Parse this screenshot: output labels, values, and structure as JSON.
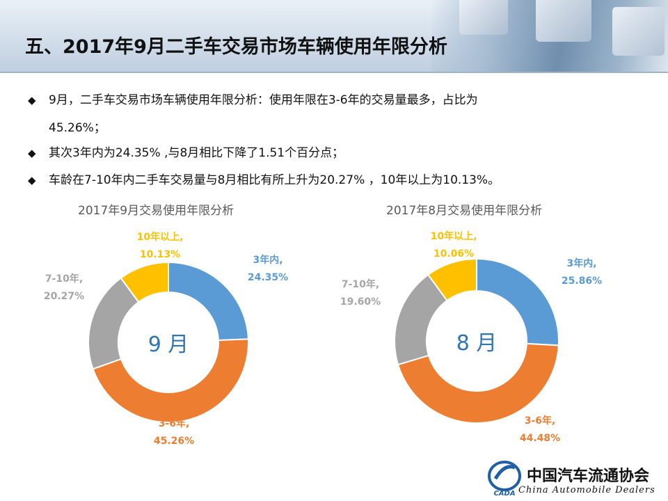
{
  "title": "五、2017年9月二手车交易市场车辆使用年限分析",
  "bullets": [
    {
      "line1": "9月，二手车交易市场车辆使用年限分析：使用年限在3-6年的交易量最多，占比为",
      "line2": "45.26%；"
    },
    {
      "line1": "其次3年内为24.35% ,与8月相比下降了1.51个百分点；"
    },
    {
      "line1": "车龄在7-10年内二手车交易量与8月相比有所上升为20.27% ，10年以上为10.13%。"
    }
  ],
  "chart_data": [
    {
      "type": "pie",
      "title": "2017年9月交易使用年限分析",
      "center_label": "9 月",
      "slices": [
        {
          "name": "3年内,",
          "value": 24.35,
          "label": "24.35%",
          "color": "#5b9bd5"
        },
        {
          "name": "3-6年,",
          "value": 45.26,
          "label": "45.26%",
          "color": "#ed7d31"
        },
        {
          "name": "7-10年,",
          "value": 20.27,
          "label": "20.27%",
          "color": "#a5a5a5"
        },
        {
          "name": "10年以上,",
          "value": 10.13,
          "label": "10.13%",
          "color": "#ffc000"
        }
      ]
    },
    {
      "type": "pie",
      "title": "2017年8月交易使用年限分析",
      "center_label": "8 月",
      "slices": [
        {
          "name": "3年内,",
          "value": 25.86,
          "label": "25.86%",
          "color": "#5b9bd5"
        },
        {
          "name": "3-6年,",
          "value": 44.48,
          "label": "44.48%",
          "color": "#ed7d31"
        },
        {
          "name": "7-10年,",
          "value": 19.6,
          "label": "19.60%",
          "color": "#a5a5a5"
        },
        {
          "name": "10年以上,",
          "value": 10.06,
          "label": "10.06%",
          "color": "#ffc000"
        }
      ]
    }
  ],
  "footer": {
    "logo_text": "CADA",
    "association_cn": "中国汽车流通协会",
    "association_en": "China  Automobile Dealers"
  }
}
